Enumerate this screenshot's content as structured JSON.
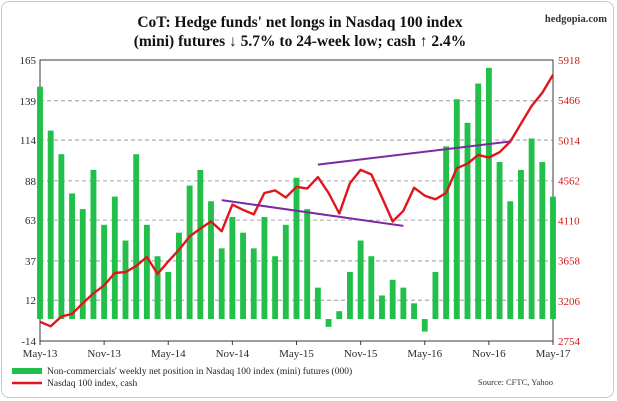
{
  "watermark": "hedgopia.com",
  "source": "Source: CFTC, Yahoo",
  "chart_data": {
    "type": "bar+line",
    "title": [
      "CoT: Hedge funds' net longs in Nasdaq 100 index",
      "(mini) futures ↓ 5.7% to 24-week low; cash ↑ 2.4%"
    ],
    "left_axis": {
      "min": -14,
      "max": 165,
      "ticks": [
        "165",
        "139",
        "114",
        "88",
        "63",
        "37",
        "12",
        "-14"
      ]
    },
    "right_axis": {
      "min": 2754,
      "max": 5918,
      "ticks": [
        "5918",
        "5466",
        "5014",
        "4562",
        "4110",
        "3658",
        "3206",
        "2754"
      ]
    },
    "x_axis": {
      "range": [
        "2013-05",
        "2017-05"
      ],
      "tick_labels": [
        "May-13",
        "Nov-13",
        "May-14",
        "Nov-14",
        "May-15",
        "Nov-15",
        "May-16",
        "Nov-16",
        "May-17"
      ]
    },
    "grid": "horizontal dashed",
    "legend": {
      "placement": "bottom-left",
      "items": [
        {
          "label": "Non-commercials' weekly net position in Nasdaq 100 index (mini) futures (000)",
          "color": "#22c04a",
          "kind": "bar"
        },
        {
          "label": "Nasdaq 100 index, cash",
          "color": "#e0161c",
          "kind": "line"
        }
      ]
    },
    "series": [
      {
        "name": "Non-commercials' weekly net position in Nasdaq 100 index (mini) futures (000)",
        "kind": "bar",
        "axis": "left",
        "color": "#22c04a",
        "points": [
          [
            "2013-05",
            148
          ],
          [
            "2013-06",
            120
          ],
          [
            "2013-07",
            105
          ],
          [
            "2013-08",
            80
          ],
          [
            "2013-09",
            70
          ],
          [
            "2013-10",
            95
          ],
          [
            "2013-11",
            60
          ],
          [
            "2013-12",
            78
          ],
          [
            "2014-01",
            50
          ],
          [
            "2014-02",
            105
          ],
          [
            "2014-03",
            60
          ],
          [
            "2014-04",
            40
          ],
          [
            "2014-05",
            30
          ],
          [
            "2014-06",
            55
          ],
          [
            "2014-07",
            85
          ],
          [
            "2014-08",
            95
          ],
          [
            "2014-09",
            75
          ],
          [
            "2014-10",
            45
          ],
          [
            "2014-11",
            65
          ],
          [
            "2014-12",
            55
          ],
          [
            "2015-01",
            45
          ],
          [
            "2015-02",
            65
          ],
          [
            "2015-03",
            40
          ],
          [
            "2015-04",
            60
          ],
          [
            "2015-05",
            90
          ],
          [
            "2015-06",
            70
          ],
          [
            "2015-07",
            20
          ],
          [
            "2015-08",
            -5
          ],
          [
            "2015-09",
            5
          ],
          [
            "2015-10",
            30
          ],
          [
            "2015-11",
            50
          ],
          [
            "2015-12",
            40
          ],
          [
            "2016-01",
            15
          ],
          [
            "2016-02",
            25
          ],
          [
            "2016-03",
            20
          ],
          [
            "2016-04",
            10
          ],
          [
            "2016-05",
            -8
          ],
          [
            "2016-06",
            30
          ],
          [
            "2016-07",
            110
          ],
          [
            "2016-08",
            140
          ],
          [
            "2016-09",
            125
          ],
          [
            "2016-10",
            150
          ],
          [
            "2016-11",
            160
          ],
          [
            "2016-12",
            100
          ],
          [
            "2017-01",
            75
          ],
          [
            "2017-02",
            95
          ],
          [
            "2017-03",
            115
          ],
          [
            "2017-04",
            100
          ],
          [
            "2017-05",
            78
          ]
        ]
      },
      {
        "name": "Nasdaq 100 index, cash",
        "kind": "line",
        "axis": "right",
        "color": "#e0161c",
        "points": [
          [
            "2013-05",
            2970
          ],
          [
            "2013-06",
            2920
          ],
          [
            "2013-07",
            3030
          ],
          [
            "2013-08",
            3060
          ],
          [
            "2013-09",
            3180
          ],
          [
            "2013-10",
            3290
          ],
          [
            "2013-11",
            3380
          ],
          [
            "2013-12",
            3520
          ],
          [
            "2014-01",
            3530
          ],
          [
            "2014-02",
            3600
          ],
          [
            "2014-03",
            3700
          ],
          [
            "2014-04",
            3510
          ],
          [
            "2014-05",
            3650
          ],
          [
            "2014-06",
            3780
          ],
          [
            "2014-07",
            3930
          ],
          [
            "2014-08",
            4020
          ],
          [
            "2014-09",
            4100
          ],
          [
            "2014-10",
            3990
          ],
          [
            "2014-11",
            4290
          ],
          [
            "2014-12",
            4230
          ],
          [
            "2015-01",
            4180
          ],
          [
            "2015-02",
            4420
          ],
          [
            "2015-03",
            4450
          ],
          [
            "2015-04",
            4370
          ],
          [
            "2015-05",
            4490
          ],
          [
            "2015-06",
            4470
          ],
          [
            "2015-07",
            4600
          ],
          [
            "2015-08",
            4420
          ],
          [
            "2015-09",
            4190
          ],
          [
            "2015-10",
            4530
          ],
          [
            "2015-11",
            4680
          ],
          [
            "2015-12",
            4630
          ],
          [
            "2016-01",
            4370
          ],
          [
            "2016-02",
            4100
          ],
          [
            "2016-03",
            4220
          ],
          [
            "2016-04",
            4480
          ],
          [
            "2016-05",
            4390
          ],
          [
            "2016-06",
            4350
          ],
          [
            "2016-07",
            4420
          ],
          [
            "2016-08",
            4700
          ],
          [
            "2016-09",
            4750
          ],
          [
            "2016-10",
            4850
          ],
          [
            "2016-11",
            4820
          ],
          [
            "2016-12",
            4880
          ],
          [
            "2017-01",
            5000
          ],
          [
            "2017-02",
            5200
          ],
          [
            "2017-03",
            5400
          ],
          [
            "2017-04",
            5550
          ],
          [
            "2017-05",
            5750
          ]
        ]
      },
      {
        "name": "",
        "kind": "trendline",
        "axis": "right",
        "color": "#7b2aa0",
        "points": [
          [
            "2014-10",
            4340
          ],
          [
            "2016-03",
            4050
          ]
        ]
      },
      {
        "name": "",
        "kind": "trendline",
        "axis": "right",
        "color": "#7b2aa0",
        "points": [
          [
            "2015-07",
            4740
          ],
          [
            "2017-01",
            5000
          ]
        ]
      }
    ]
  }
}
